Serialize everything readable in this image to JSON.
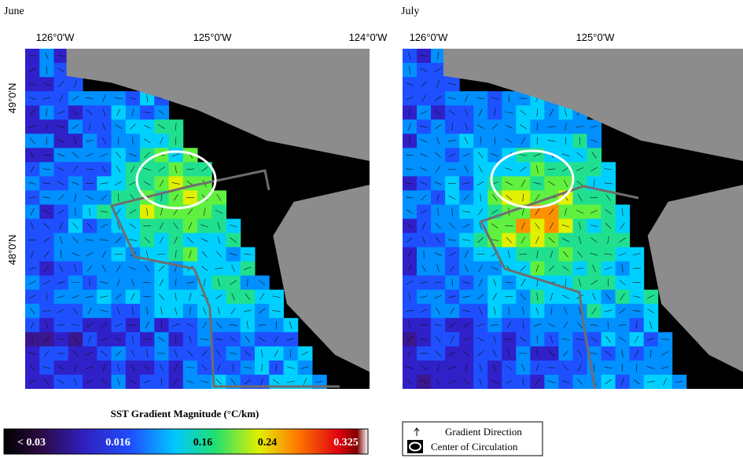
{
  "panels": [
    {
      "title": "June",
      "lon_labels": [
        "126°0'W",
        "125°0'W",
        "124°0'W"
      ],
      "lat_labels": [
        "49°0'N",
        "48°0'N"
      ]
    },
    {
      "title": "July",
      "lon_labels": [
        "126°0'W",
        "125°0'W"
      ]
    }
  ],
  "colorbar": {
    "title": "SST Gradient Magnitude (°C/km)",
    "labels": [
      "< 0.03",
      "0.016",
      "0.16",
      "0.24",
      "0.325"
    ]
  },
  "legend": {
    "items": [
      "Gradient Direction",
      "Center of Circulation"
    ]
  }
}
